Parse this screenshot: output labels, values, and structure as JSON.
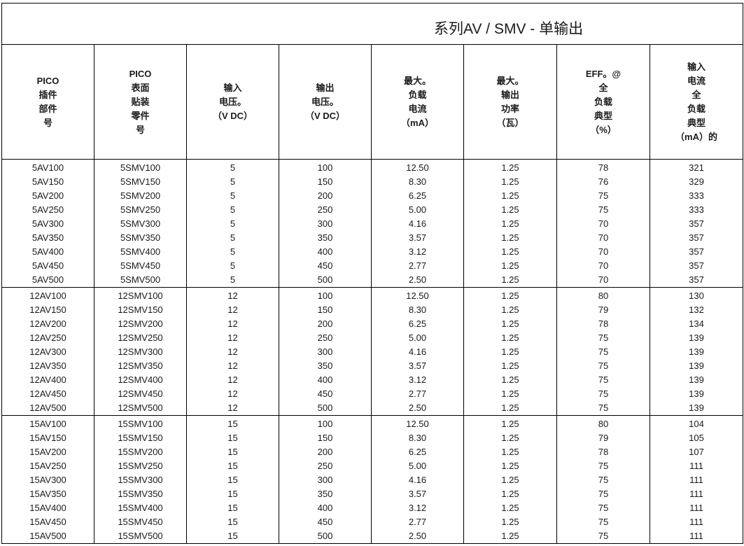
{
  "title": "系列AV / SMV - 单输出",
  "headers": [
    [
      "PICO",
      "插件",
      "部件",
      "号"
    ],
    [
      "PICO",
      "表面",
      "贴装",
      "零件",
      "号"
    ],
    [
      "输入",
      "电压。",
      "（V DC）"
    ],
    [
      "输出",
      "电压。",
      "（V DC）"
    ],
    [
      "最大。",
      "负载",
      "电流",
      "（mA）"
    ],
    [
      "最大。",
      "输出",
      "功率",
      "（瓦）"
    ],
    [
      "EFF。@",
      "全",
      "负载",
      "典型",
      "（%）"
    ],
    [
      "输入",
      "电流",
      "全",
      "负载",
      "典型",
      "（mA）的"
    ]
  ],
  "groups": [
    [
      [
        "5AV100",
        "5SMV100",
        "5",
        "100",
        "12.50",
        "1.25",
        "78",
        "321"
      ],
      [
        "5AV150",
        "5SMV150",
        "5",
        "150",
        "8.30",
        "1.25",
        "76",
        "329"
      ],
      [
        "5AV200",
        "5SMV200",
        "5",
        "200",
        "6.25",
        "1.25",
        "75",
        "333"
      ],
      [
        "5AV250",
        "5SMV250",
        "5",
        "250",
        "5.00",
        "1.25",
        "75",
        "333"
      ],
      [
        "5AV300",
        "5SMV300",
        "5",
        "300",
        "4.16",
        "1.25",
        "70",
        "357"
      ],
      [
        "5AV350",
        "5SMV350",
        "5",
        "350",
        "3.57",
        "1.25",
        "70",
        "357"
      ],
      [
        "5AV400",
        "5SMV400",
        "5",
        "400",
        "3.12",
        "1.25",
        "70",
        "357"
      ],
      [
        "5AV450",
        "5SMV450",
        "5",
        "450",
        "2.77",
        "1.25",
        "70",
        "357"
      ],
      [
        "5AV500",
        "5SMV500",
        "5",
        "500",
        "2.50",
        "1.25",
        "70",
        "357"
      ]
    ],
    [
      [
        "12AV100",
        "12SMV100",
        "12",
        "100",
        "12.50",
        "1.25",
        "80",
        "130"
      ],
      [
        "12AV150",
        "12SMV150",
        "12",
        "150",
        "8.30",
        "1.25",
        "79",
        "132"
      ],
      [
        "12AV200",
        "12SMV200",
        "12",
        "200",
        "6.25",
        "1.25",
        "78",
        "134"
      ],
      [
        "12AV250",
        "12SMV250",
        "12",
        "250",
        "5.00",
        "1.25",
        "75",
        "139"
      ],
      [
        "12AV300",
        "12SMV300",
        "12",
        "300",
        "4.16",
        "1.25",
        "75",
        "139"
      ],
      [
        "12AV350",
        "12SMV350",
        "12",
        "350",
        "3.57",
        "1.25",
        "75",
        "139"
      ],
      [
        "12AV400",
        "12SMV400",
        "12",
        "400",
        "3.12",
        "1.25",
        "75",
        "139"
      ],
      [
        "12AV450",
        "12SMV450",
        "12",
        "450",
        "2.77",
        "1.25",
        "75",
        "139"
      ],
      [
        "12AV500",
        "12SMV500",
        "12",
        "500",
        "2.50",
        "1.25",
        "75",
        "139"
      ]
    ],
    [
      [
        "15AV100",
        "15SMV100",
        "15",
        "100",
        "12.50",
        "1.25",
        "80",
        "104"
      ],
      [
        "15AV150",
        "15SMV150",
        "15",
        "150",
        "8.30",
        "1.25",
        "79",
        "105"
      ],
      [
        "15AV200",
        "15SMV200",
        "15",
        "200",
        "6.25",
        "1.25",
        "78",
        "107"
      ],
      [
        "15AV250",
        "15SMV250",
        "15",
        "250",
        "5.00",
        "1.25",
        "75",
        "111"
      ],
      [
        "15AV300",
        "15SMV300",
        "15",
        "300",
        "4.16",
        "1.25",
        "75",
        "111"
      ],
      [
        "15AV350",
        "15SMV350",
        "15",
        "350",
        "3.57",
        "1.25",
        "75",
        "111"
      ],
      [
        "15AV400",
        "15SMV400",
        "15",
        "400",
        "3.12",
        "1.25",
        "75",
        "111"
      ],
      [
        "15AV450",
        "15SMV450",
        "15",
        "450",
        "2.77",
        "1.25",
        "75",
        "111"
      ],
      [
        "15AV500",
        "15SMV500",
        "15",
        "500",
        "2.50",
        "1.25",
        "75",
        "111"
      ]
    ]
  ]
}
